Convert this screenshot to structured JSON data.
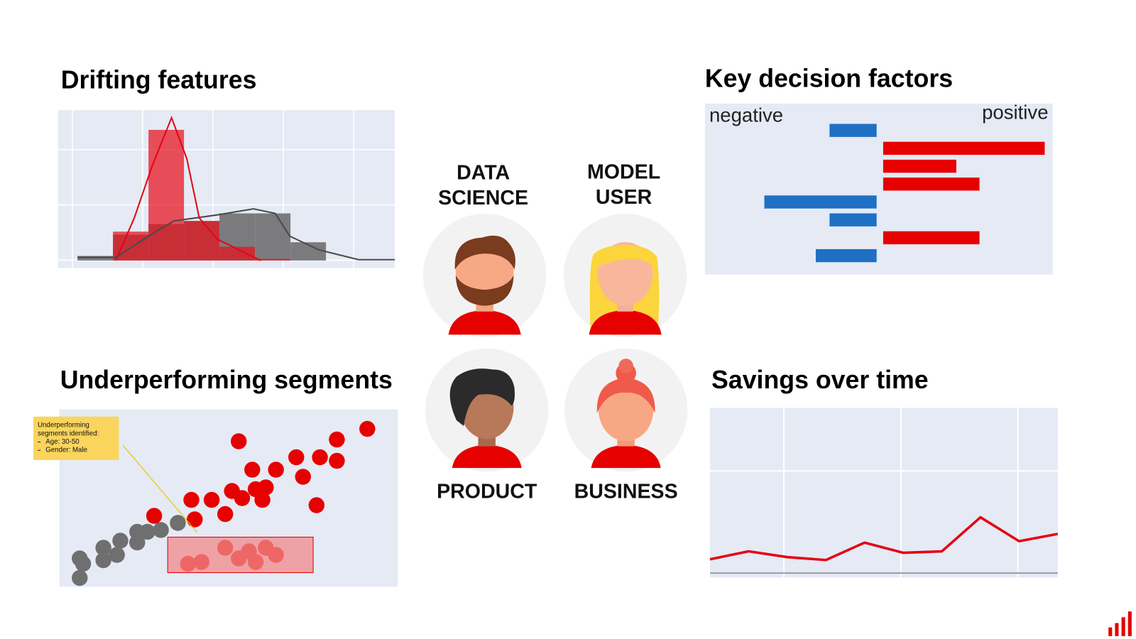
{
  "chart_data": [
    {
      "type": "histogram",
      "title": "Drifting features",
      "bins": [
        0,
        1,
        2,
        3,
        4,
        5,
        6,
        7,
        8
      ],
      "series": [
        {
          "color": "#7b7b7d",
          "opacity": 1,
          "values": [
            0.3,
            1.7,
            2.4,
            2.6,
            3.1,
            3.1,
            1.2,
            0
          ]
        },
        {
          "color": "#e8101c",
          "opacity": 0.72,
          "values": [
            0,
            1.9,
            8.6,
            2.6,
            0.9,
            0.1,
            0,
            0
          ]
        }
      ],
      "curves": [
        {
          "color": "#e30613",
          "x": [
            1.08,
            1.6,
            2.1,
            2.65,
            3.08,
            3.43,
            3.94,
            4.55,
            5.16
          ],
          "values": [
            0,
            2.8,
            6.2,
            9.4,
            6.7,
            2.8,
            1.4,
            0.7,
            0
          ]
        },
        {
          "color": "#4a4a4a",
          "x": [
            0,
            1.08,
            2,
            2.71,
            3.94,
            4.96,
            5.57,
            5.98,
            6.8,
            7.92,
            8.94
          ],
          "values": [
            0.2,
            0.2,
            1.6,
            2.6,
            3,
            3.4,
            3.1,
            1.6,
            0.7,
            0.05,
            0.05
          ]
        }
      ],
      "xlim": [
        -0.55,
        8.94
      ],
      "ylim": [
        -0.5,
        9.9
      ],
      "grid": true
    },
    {
      "type": "bar",
      "orientation": "horizontal",
      "title": "Key decision factors",
      "annotations": [
        "negative",
        "positive"
      ],
      "categories": [
        null,
        null,
        null,
        null,
        null,
        null,
        null,
        null
      ],
      "values": [
        -65,
        223,
        101,
        133,
        -155,
        -65,
        133,
        -84
      ],
      "negative_color": "#1f6fc4",
      "positive_color": "#e60000",
      "xlim": [
        -237,
        243
      ],
      "grid": false
    },
    {
      "type": "scatter",
      "title": "Underperforming segments",
      "series": [
        {
          "color": "#6f6f70",
          "x": [
            6,
            6,
            7,
            13,
            13,
            17,
            18,
            23,
            23,
            26,
            30,
            35
          ],
          "values": [
            5,
            16,
            13,
            15,
            22,
            18,
            26,
            25,
            31,
            31,
            32,
            36
          ]
        },
        {
          "color": "#e60000",
          "x": [
            53,
            91,
            82,
            70,
            77,
            82,
            64,
            57,
            72,
            51,
            58,
            61,
            39,
            45,
            54,
            60,
            76,
            49,
            28,
            40,
            49,
            56,
            61,
            64,
            38,
            42,
            53,
            58
          ],
          "values": [
            82,
            89,
            83,
            73,
            73,
            71,
            66,
            66,
            62,
            54,
            55,
            56,
            49,
            49,
            50,
            49,
            46,
            41,
            40,
            38,
            22,
            20,
            22,
            18,
            13,
            14,
            16,
            14
          ]
        }
      ],
      "highlight": {
        "x": [
          32,
          75
        ],
        "y": [
          8,
          28
        ]
      },
      "annotation": {
        "text_lines": [
          "Underperforming",
          "segments identified:"
        ],
        "items": [
          "Age: 30-50",
          "Gender: Male"
        ]
      },
      "xlim": [
        0,
        100
      ],
      "ylim": [
        0,
        100
      ],
      "grid": false
    },
    {
      "type": "line",
      "title": "Savings over time",
      "x": [
        0,
        1,
        2,
        3,
        4,
        5,
        6,
        7,
        8,
        9
      ],
      "series": [
        {
          "color": "#e30613",
          "values": [
            19,
            30,
            22,
            18,
            42,
            28,
            30,
            77,
            44,
            54
          ]
        }
      ],
      "xlim": [
        0,
        9
      ],
      "ylim": [
        -6,
        228
      ],
      "grid": true
    }
  ],
  "personas": [
    {
      "lines": [
        "DATA",
        "SCIENCE"
      ]
    },
    {
      "lines": [
        "MODEL",
        "USER"
      ]
    },
    {
      "lines": [
        "PRODUCT"
      ]
    },
    {
      "lines": [
        "BUSINESS"
      ]
    }
  ]
}
